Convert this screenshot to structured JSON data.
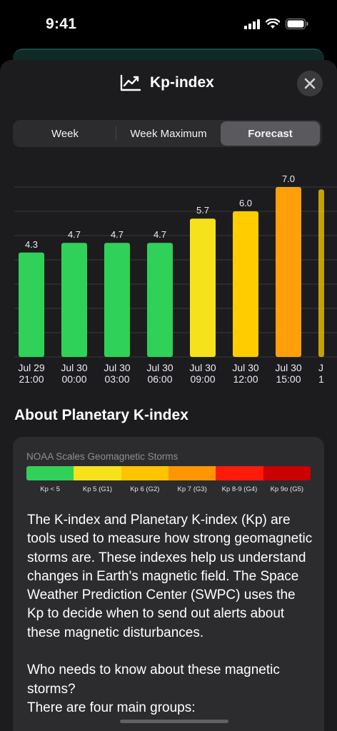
{
  "status_bar": {
    "time": "9:41"
  },
  "header": {
    "title": "Kp-index",
    "title_icon": "chart-line-icon",
    "close_icon": "close-icon"
  },
  "tabs": [
    {
      "label": "Week",
      "active": false
    },
    {
      "label": "Week Maximum",
      "active": false
    },
    {
      "label": "Forecast",
      "active": true
    }
  ],
  "chart_data": {
    "type": "bar",
    "title": "",
    "xlabel": "",
    "ylabel": "",
    "ylim": [
      0,
      9
    ],
    "grid": true,
    "categories": [
      {
        "date": "Jul 29",
        "time": "21:00"
      },
      {
        "date": "Jul 30",
        "time": "00:00"
      },
      {
        "date": "Jul 30",
        "time": "03:00"
      },
      {
        "date": "Jul 30",
        "time": "06:00"
      },
      {
        "date": "Jul 30",
        "time": "09:00"
      },
      {
        "date": "Jul 30",
        "time": "12:00"
      },
      {
        "date": "Jul 30",
        "time": "15:00"
      },
      {
        "date": "J",
        "time": "1"
      }
    ],
    "values": [
      4.3,
      4.7,
      4.7,
      4.7,
      5.7,
      6.0,
      7.0,
      6.9
    ],
    "value_labels": [
      "4.3",
      "4.7",
      "4.7",
      "4.7",
      "5.7",
      "6.0",
      "7.0",
      ""
    ],
    "colors": [
      "#30d158",
      "#30d158",
      "#30d158",
      "#30d158",
      "#f5e21a",
      "#ffcc00",
      "#ff9f0a",
      "#ffcc00"
    ]
  },
  "about": {
    "title": "About Planetary K-index",
    "scale_title": "NOAA Scales Geomagnetic Storms",
    "scale": [
      {
        "label": "Kp < 5",
        "color": "#30d158"
      },
      {
        "label": "Kp 5 (G1)",
        "color": "#f5e21a"
      },
      {
        "label": "Kp 6 (G2)",
        "color": "#ffc300"
      },
      {
        "label": "Kp 7 (G3)",
        "color": "#ff9500"
      },
      {
        "label": "Kp 8-9 (G4)",
        "color": "#ff1a0a"
      },
      {
        "label": "Kp 9o (G5)",
        "color": "#cc0000"
      }
    ],
    "body": "The K-index and Planetary K-index (Kp) are tools used to measure how strong geomagnetic storms are. These indexes help us understand changes in Earth's magnetic field. The Space Weather Prediction Center (SWPC) uses the Kp to decide when to send out alerts about these magnetic disturbances.\n\nWho needs to know about these magnetic storms?\nThere are four main groups:"
  }
}
